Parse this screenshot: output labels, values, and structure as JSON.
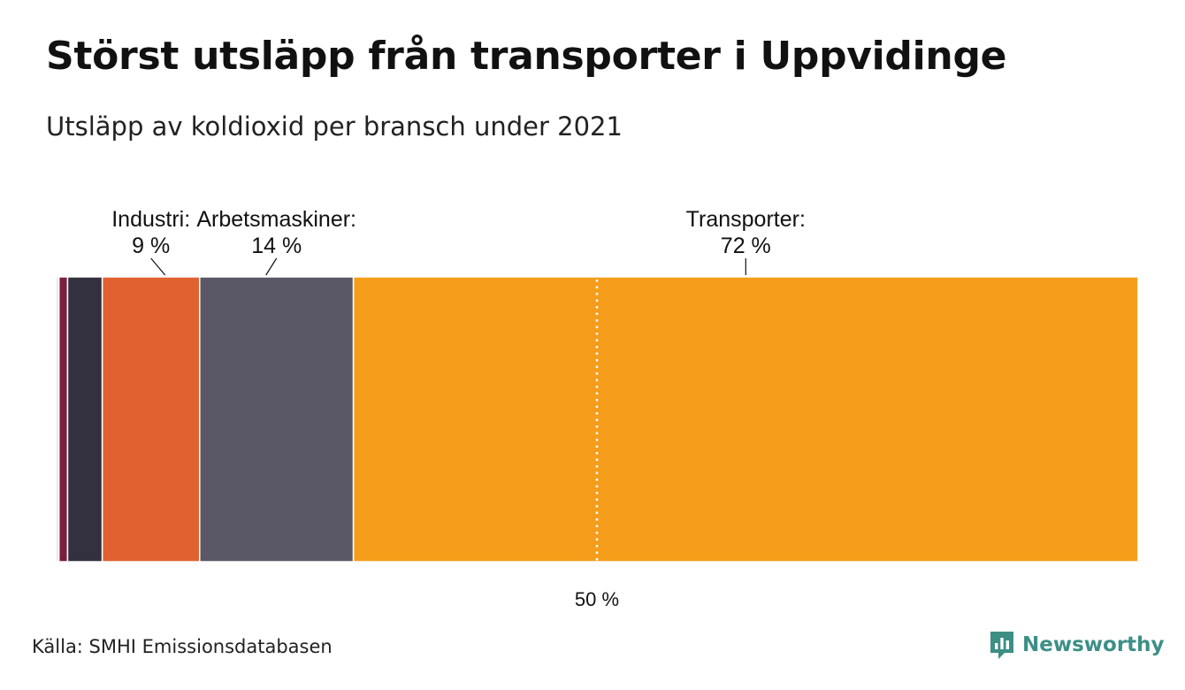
{
  "title": "Störst utsläpp från transporter i Uppvidinge",
  "subtitle": "Utsläpp av koldioxid per bransch under 2021",
  "source": "Källa: SMHI Emissionsdatabasen",
  "brand": {
    "name": "Newsworthy",
    "icon": "newsworthy-logo-icon",
    "color": "#3d8f86"
  },
  "chart_data": {
    "type": "bar",
    "orientation": "horizontal-stacked-100",
    "unit": "%",
    "segments": [
      {
        "key": "a",
        "value": 0.3,
        "color": "#f3e6e6"
      },
      {
        "key": "b",
        "value": 0.8,
        "color": "#7a1f3d"
      },
      {
        "key": "c",
        "value": 3.2,
        "color": "#33313f"
      },
      {
        "key": "industri",
        "label": "Industri:",
        "value_label": "9 %",
        "value": 9.0,
        "color": "#e06230"
      },
      {
        "key": "arbetsmaskiner",
        "label": "Arbetsmaskiner:",
        "value_label": "14 %",
        "value": 14.2,
        "color": "#5a5866"
      },
      {
        "key": "transporter",
        "label": "Transporter:",
        "value_label": "72 %",
        "value": 72.5,
        "color": "#f59d1a"
      }
    ],
    "reference_line": {
      "value": 50,
      "label": "50 %",
      "style": "dotted"
    }
  }
}
